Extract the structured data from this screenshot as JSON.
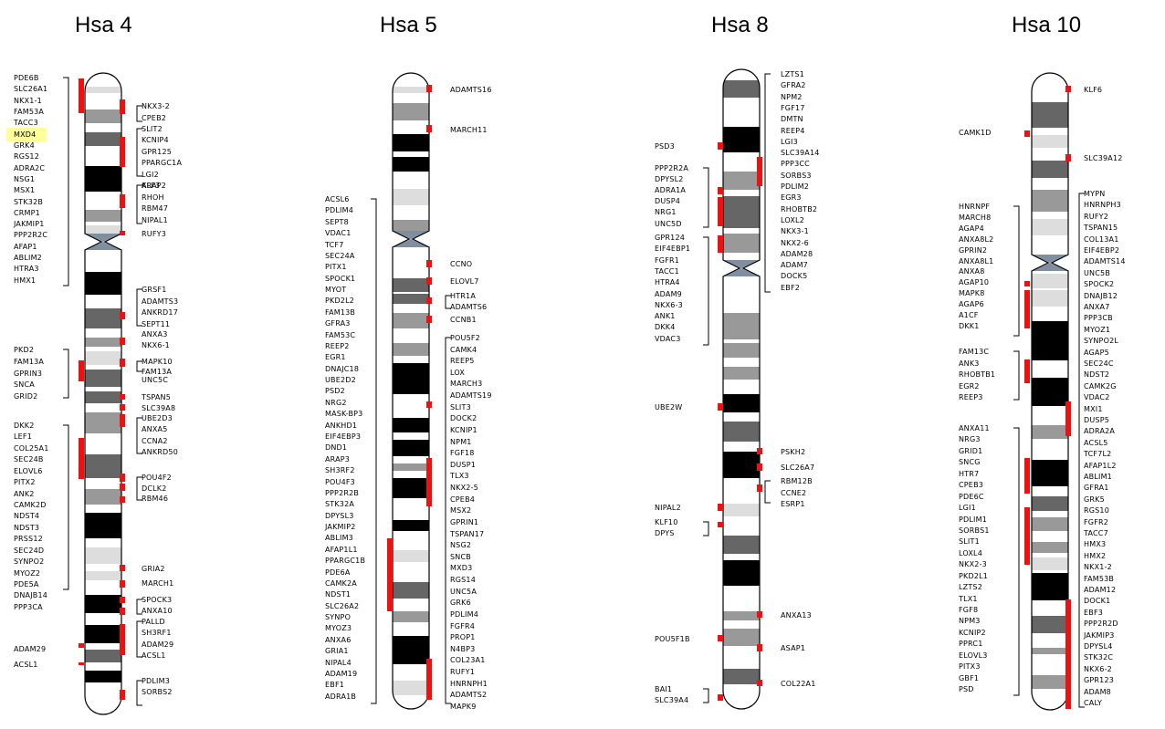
{
  "colors": {
    "red": "#ee1111",
    "highlight": "#ffff99",
    "dark": "#666666",
    "mid": "#999999",
    "light": "#dddddd",
    "black": "#000000",
    "centromere": "#7f8fa0"
  },
  "chromosomes": [
    {
      "id": "hsa4",
      "title": "Hsa 4",
      "genes": [
        {
          "name": "PDE6B"
        },
        {
          "name": "SLC26A1"
        },
        {
          "name": "NKX1-1"
        },
        {
          "name": "FAM53A"
        },
        {
          "name": "TACC3"
        },
        {
          "name": "MXD4",
          "highlight": true
        },
        {
          "name": "GRK4"
        },
        {
          "name": "RGS12"
        },
        {
          "name": "ADRA2C"
        },
        {
          "name": "NSG1"
        },
        {
          "name": "MSX1"
        },
        {
          "name": "STK32B"
        },
        {
          "name": "CRMP1"
        },
        {
          "name": "JAKMIP1"
        },
        {
          "name": "PPP2R2C"
        },
        {
          "name": "AFAP1"
        },
        {
          "name": "ABLIM2"
        },
        {
          "name": "HTRA3"
        },
        {
          "name": "HMX1"
        },
        {
          "name": "NKX3-2"
        },
        {
          "name": "CPEB2"
        },
        {
          "name": "SLIT2"
        },
        {
          "name": "KCNIP4"
        },
        {
          "name": "GPR125"
        },
        {
          "name": "PPARGC1A"
        },
        {
          "name": "LGI2"
        },
        {
          "name": "ARAP2"
        },
        {
          "name": "KLF3"
        },
        {
          "name": "RHOH"
        },
        {
          "name": "RBM47"
        },
        {
          "name": "NIPAL1"
        },
        {
          "name": "RUFY3"
        },
        {
          "name": "GRSF1"
        },
        {
          "name": "ADAMTS3"
        },
        {
          "name": "ANKRD17"
        },
        {
          "name": "SEPT11"
        },
        {
          "name": "ANXA3"
        },
        {
          "name": "PKD2"
        },
        {
          "name": "FAM13A"
        },
        {
          "name": "GPRIN3"
        },
        {
          "name": "SNCA"
        },
        {
          "name": "GRID2"
        },
        {
          "name": "NKX6-1"
        },
        {
          "name": "MAPK10"
        },
        {
          "name": "FAM13A"
        },
        {
          "name": "UNC5C"
        },
        {
          "name": "TSPAN5"
        },
        {
          "name": "DKK2"
        },
        {
          "name": "LEF1"
        },
        {
          "name": "COL25A1"
        },
        {
          "name": "SEC24B"
        },
        {
          "name": "ELOVL6"
        },
        {
          "name": "PITX2"
        },
        {
          "name": "ANK2"
        },
        {
          "name": "CAMK2D"
        },
        {
          "name": "NDST4"
        },
        {
          "name": "NDST3"
        },
        {
          "name": "PRSS12"
        },
        {
          "name": "SEC24D"
        },
        {
          "name": "SYNPO2"
        },
        {
          "name": "MYOZ2"
        },
        {
          "name": "PDE5A"
        },
        {
          "name": "DNAJB14"
        },
        {
          "name": "PPP3CA"
        },
        {
          "name": "SLC39A8"
        },
        {
          "name": "UBE2D3"
        },
        {
          "name": "ANXA5"
        },
        {
          "name": "CCNA2"
        },
        {
          "name": "ANKRD50"
        },
        {
          "name": "POU4F2"
        },
        {
          "name": "DCLK2"
        },
        {
          "name": "RBM46"
        },
        {
          "name": "GRIA2"
        },
        {
          "name": "MARCH1"
        },
        {
          "name": "SPOCK3"
        },
        {
          "name": "ANXA10"
        },
        {
          "name": "PALLD"
        },
        {
          "name": "SH3RF1"
        },
        {
          "name": "ADAM29"
        },
        {
          "name": "ACSL1"
        },
        {
          "name": "PDLIM3"
        },
        {
          "name": "SORBS2"
        }
      ]
    },
    {
      "id": "hsa5",
      "title": "Hsa 5",
      "genes": [
        {
          "name": "ADAMTS16"
        },
        {
          "name": "MARCH11"
        },
        {
          "name": "ACSL6"
        },
        {
          "name": "PDLIM4"
        },
        {
          "name": "SEPT8"
        },
        {
          "name": "VDAC1"
        },
        {
          "name": "TCF7"
        },
        {
          "name": "SEC24A"
        },
        {
          "name": "PITX1"
        },
        {
          "name": "SPOCK1"
        },
        {
          "name": "MYOT"
        },
        {
          "name": "PKD2L2"
        },
        {
          "name": "FAM13B"
        },
        {
          "name": "GFRA3"
        },
        {
          "name": "FAM53C"
        },
        {
          "name": "REEP2"
        },
        {
          "name": "EGR1"
        },
        {
          "name": "DNAJC18"
        },
        {
          "name": "UBE2D2"
        },
        {
          "name": "PSD2"
        },
        {
          "name": "NRG2"
        },
        {
          "name": "MASK-BP3"
        },
        {
          "name": "ANKHD1"
        },
        {
          "name": "EIF4EBP3"
        },
        {
          "name": "DND1"
        },
        {
          "name": "ARAP3"
        },
        {
          "name": "SH3RF2"
        },
        {
          "name": "POU4F3"
        },
        {
          "name": "PPP2R2B"
        },
        {
          "name": "STK32A"
        },
        {
          "name": "DPYSL3"
        },
        {
          "name": "JAKMIP2"
        },
        {
          "name": "ABLIM3"
        },
        {
          "name": "AFAP1L1"
        },
        {
          "name": "PPARGC1B"
        },
        {
          "name": "PDE6A"
        },
        {
          "name": "CAMK2A"
        },
        {
          "name": "NDST1"
        },
        {
          "name": "SLC26A2"
        },
        {
          "name": "SYNPO"
        },
        {
          "name": "MYOZ3"
        },
        {
          "name": "ANXA6"
        },
        {
          "name": "GRIA1"
        },
        {
          "name": "NIPAL4"
        },
        {
          "name": "ADAM19"
        },
        {
          "name": "EBF1"
        },
        {
          "name": "ADRA1B"
        },
        {
          "name": "CCNO"
        },
        {
          "name": "ELOVL7"
        },
        {
          "name": "HTR1A"
        },
        {
          "name": "ADAMTS6"
        },
        {
          "name": "CCNB1"
        },
        {
          "name": "POU5F2"
        },
        {
          "name": "CAMK4"
        },
        {
          "name": "REEP5"
        },
        {
          "name": "LOX"
        },
        {
          "name": "MARCH3"
        },
        {
          "name": "ADAMTS19"
        },
        {
          "name": "SLIT3"
        },
        {
          "name": "DOCK2"
        },
        {
          "name": "KCNIP1"
        },
        {
          "name": "NPM1"
        },
        {
          "name": "FGF18"
        },
        {
          "name": "DUSP1"
        },
        {
          "name": "TLX3"
        },
        {
          "name": "NKX2-5"
        },
        {
          "name": "CPEB4"
        },
        {
          "name": "MSX2"
        },
        {
          "name": "GPRIN1"
        },
        {
          "name": "TSPAN17"
        },
        {
          "name": "NSG2"
        },
        {
          "name": "SNCB"
        },
        {
          "name": "MXD3"
        },
        {
          "name": "RGS14"
        },
        {
          "name": "UNC5A"
        },
        {
          "name": "GRK6"
        },
        {
          "name": "PDLIM4"
        },
        {
          "name": "FGFR4"
        },
        {
          "name": "PROP1"
        },
        {
          "name": "N4BP3"
        },
        {
          "name": "COL23A1"
        },
        {
          "name": "RUFY1"
        },
        {
          "name": "HNRNPH1"
        },
        {
          "name": "ADAMTS2"
        },
        {
          "name": "MAPK9"
        }
      ]
    },
    {
      "id": "hsa8",
      "title": "Hsa 8",
      "genes": [
        {
          "name": "PSD3"
        },
        {
          "name": "PPP2R2A"
        },
        {
          "name": "DPYSL2"
        },
        {
          "name": "ADRA1A"
        },
        {
          "name": "DUSP4"
        },
        {
          "name": "NRG1"
        },
        {
          "name": "UNC5D"
        },
        {
          "name": "GPR124"
        },
        {
          "name": "EIF4EBP1"
        },
        {
          "name": "FGFR1"
        },
        {
          "name": "TACC1"
        },
        {
          "name": "HTRA4"
        },
        {
          "name": "ADAM9"
        },
        {
          "name": "NKX6-3"
        },
        {
          "name": "ANK1"
        },
        {
          "name": "DKK4"
        },
        {
          "name": "VDAC3"
        },
        {
          "name": "UBE2W"
        },
        {
          "name": "NIPAL2"
        },
        {
          "name": "KLF10"
        },
        {
          "name": "DPYS"
        },
        {
          "name": "POU5F1B"
        },
        {
          "name": "BAI1"
        },
        {
          "name": "SLC39A4"
        },
        {
          "name": "LZTS1"
        },
        {
          "name": "GFRA2"
        },
        {
          "name": "NPM2"
        },
        {
          "name": "FGF17"
        },
        {
          "name": "DMTN"
        },
        {
          "name": "REEP4"
        },
        {
          "name": "LGI3"
        },
        {
          "name": "SLC39A14"
        },
        {
          "name": "PPP3CC"
        },
        {
          "name": "SORBS3"
        },
        {
          "name": "PDLIM2"
        },
        {
          "name": "EGR3"
        },
        {
          "name": "RHOBTB2"
        },
        {
          "name": "LOXL2"
        },
        {
          "name": "NKX3-1"
        },
        {
          "name": "NKX2-6"
        },
        {
          "name": "ADAM28"
        },
        {
          "name": "ADAM7"
        },
        {
          "name": "DOCK5"
        },
        {
          "name": "EBF2"
        },
        {
          "name": "PSKH2"
        },
        {
          "name": "SLC26A7"
        },
        {
          "name": "RBM12B"
        },
        {
          "name": "CCNE2"
        },
        {
          "name": "ESRP1"
        },
        {
          "name": "ANXA13"
        },
        {
          "name": "ASAP1"
        },
        {
          "name": "COL22A1"
        }
      ]
    },
    {
      "id": "hsa10",
      "title": "Hsa 10",
      "genes": [
        {
          "name": "CAMK1D"
        },
        {
          "name": "HNRNPF"
        },
        {
          "name": "MARCH8"
        },
        {
          "name": "AGAP4"
        },
        {
          "name": "ANXA8L2"
        },
        {
          "name": "GPRIN2"
        },
        {
          "name": "ANXA8L1"
        },
        {
          "name": "ANXA8"
        },
        {
          "name": "AGAP10"
        },
        {
          "name": "MAPK8"
        },
        {
          "name": "AGAP6"
        },
        {
          "name": "A1CF"
        },
        {
          "name": "DKK1"
        },
        {
          "name": "FAM13C"
        },
        {
          "name": "ANK3"
        },
        {
          "name": "RHOBTB1"
        },
        {
          "name": "EGR2"
        },
        {
          "name": "REEP3"
        },
        {
          "name": "ANXA11"
        },
        {
          "name": "NRG3"
        },
        {
          "name": "GRID1"
        },
        {
          "name": "SNCG"
        },
        {
          "name": "HTR7"
        },
        {
          "name": "CPEB3"
        },
        {
          "name": "PDE6C"
        },
        {
          "name": "LGI1"
        },
        {
          "name": "PDLIM1"
        },
        {
          "name": "SORBS1"
        },
        {
          "name": "SLIT1"
        },
        {
          "name": "LOXL4"
        },
        {
          "name": "NKX2-3"
        },
        {
          "name": "PKD2L1"
        },
        {
          "name": "LZTS2"
        },
        {
          "name": "TLX1"
        },
        {
          "name": "FGF8"
        },
        {
          "name": "NPM3"
        },
        {
          "name": "KCNIP2"
        },
        {
          "name": "PPRC1"
        },
        {
          "name": "ELOVL3"
        },
        {
          "name": "PITX3"
        },
        {
          "name": "GBF1"
        },
        {
          "name": "PSD"
        },
        {
          "name": "KLF6"
        },
        {
          "name": "SLC39A12"
        },
        {
          "name": "MYPN"
        },
        {
          "name": "HNRNPH3"
        },
        {
          "name": "RUFY2"
        },
        {
          "name": "TSPAN15"
        },
        {
          "name": "COL13A1"
        },
        {
          "name": "EIF4EBP2"
        },
        {
          "name": "ADAMTS14"
        },
        {
          "name": "UNC5B"
        },
        {
          "name": "SPOCK2"
        },
        {
          "name": "DNAJB12"
        },
        {
          "name": "ANXA7"
        },
        {
          "name": "PPP3CB"
        },
        {
          "name": "MYOZ1"
        },
        {
          "name": "SYNPO2L"
        },
        {
          "name": "AGAP5"
        },
        {
          "name": "SEC24C"
        },
        {
          "name": "NDST2"
        },
        {
          "name": "CAMK2G"
        },
        {
          "name": "VDAC2"
        },
        {
          "name": "MXI1"
        },
        {
          "name": "DUSP5"
        },
        {
          "name": "ADRA2A"
        },
        {
          "name": "ACSL5"
        },
        {
          "name": "TCF7L2"
        },
        {
          "name": "AFAP1L2"
        },
        {
          "name": "ABLIM1"
        },
        {
          "name": "GFRA1"
        },
        {
          "name": "GRK5"
        },
        {
          "name": "RGS10"
        },
        {
          "name": "FGFR2"
        },
        {
          "name": "TACC7"
        },
        {
          "name": "HMX3"
        },
        {
          "name": "HMX2"
        },
        {
          "name": "NKX1-2"
        },
        {
          "name": "FAM53B"
        },
        {
          "name": "ADAM12"
        },
        {
          "name": "DOCK1"
        },
        {
          "name": "EBF3"
        },
        {
          "name": "PPP2R2D"
        },
        {
          "name": "JAKMIP3"
        },
        {
          "name": "DPYSL4"
        },
        {
          "name": "STK32C"
        },
        {
          "name": "NKX6-2"
        },
        {
          "name": "GPR123"
        },
        {
          "name": "ADAM8"
        },
        {
          "name": "CALY"
        }
      ]
    }
  ]
}
